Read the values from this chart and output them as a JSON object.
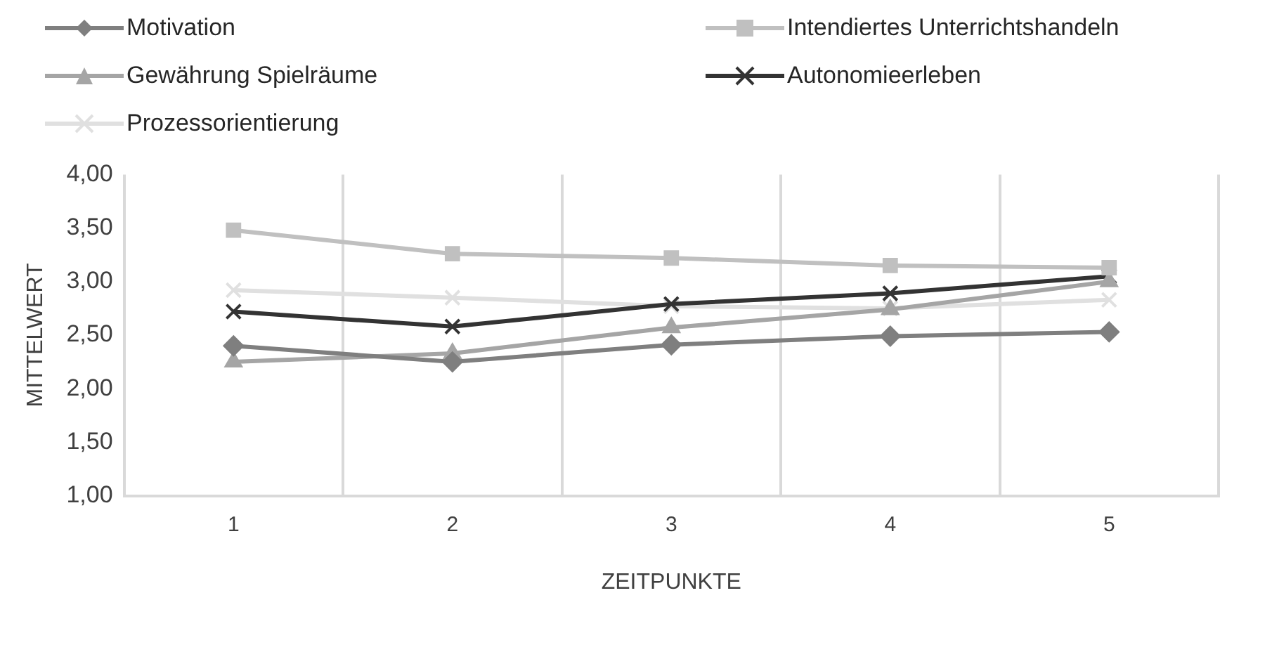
{
  "chart_data": {
    "type": "line",
    "xlabel": "ZEITPUNKTE",
    "ylabel": "MITTELWERT",
    "categories": [
      "1",
      "2",
      "3",
      "4",
      "5"
    ],
    "series": [
      {
        "name": "Motivation",
        "color": "#7f7f7f",
        "marker": "diamond",
        "values": [
          2.4,
          2.25,
          2.41,
          2.49,
          2.53
        ]
      },
      {
        "name": "Intendiertes Unterrichtshandeln",
        "color": "#c0c0c0",
        "marker": "square",
        "values": [
          3.48,
          3.26,
          3.22,
          3.15,
          3.13
        ]
      },
      {
        "name": "Gewährung Spielräume",
        "color": "#a5a5a5",
        "marker": "triangle",
        "values": [
          2.25,
          2.33,
          2.57,
          2.74,
          3.0
        ]
      },
      {
        "name": "Autonomieerleben",
        "color": "#333333",
        "marker": "cross",
        "values": [
          2.72,
          2.58,
          2.79,
          2.89,
          3.05
        ]
      },
      {
        "name": "Prozessorientierung",
        "color": "#e0e0e0",
        "marker": "cross",
        "values": [
          2.92,
          2.85,
          2.77,
          2.75,
          2.83
        ]
      }
    ],
    "ylim": [
      1,
      4
    ],
    "yticks": [
      {
        "value": 1,
        "label": "1,00"
      },
      {
        "value": 1.5,
        "label": "1,50"
      },
      {
        "value": 2,
        "label": "2,00"
      },
      {
        "value": 2.5,
        "label": "2,50"
      },
      {
        "value": 3,
        "label": "3,00"
      },
      {
        "value": 3.5,
        "label": "3,50"
      },
      {
        "value": 4,
        "label": "4,00"
      }
    ],
    "grid": "x",
    "legend": "top left",
    "line_style": "solid"
  }
}
